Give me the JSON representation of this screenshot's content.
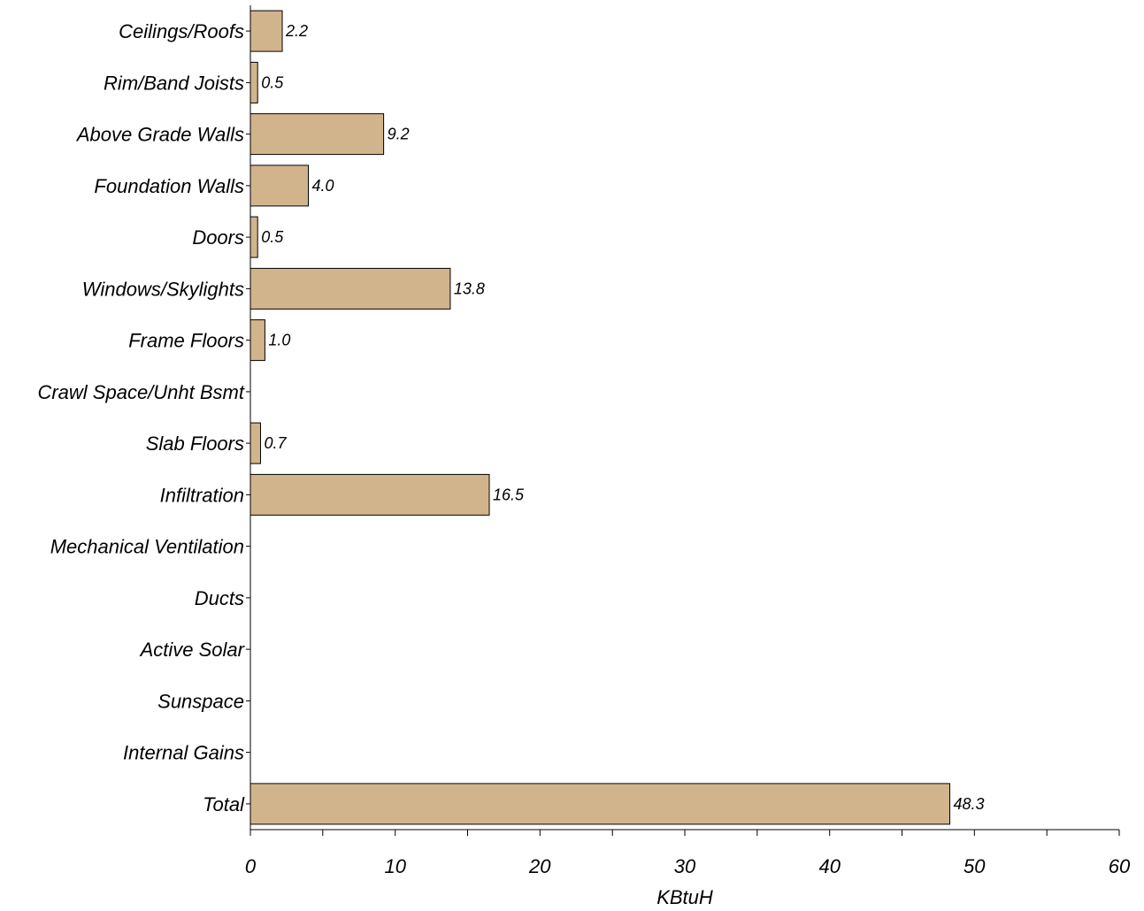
{
  "chart_data": {
    "type": "bar",
    "orientation": "horizontal",
    "categories": [
      "Ceilings/Roofs",
      "Rim/Band Joists",
      "Above Grade Walls",
      "Foundation Walls",
      "Doors",
      "Windows/Skylights",
      "Frame Floors",
      "Crawl Space/Unht Bsmt",
      "Slab Floors",
      "Infiltration",
      "Mechanical Ventilation",
      "Ducts",
      "Active Solar",
      "Sunspace",
      "Internal Gains",
      "Total"
    ],
    "values": [
      2.2,
      0.5,
      9.2,
      4.0,
      0.5,
      13.8,
      1.0,
      null,
      0.7,
      16.5,
      null,
      null,
      null,
      null,
      null,
      48.3
    ],
    "value_labels": [
      "2.2",
      "0.5",
      "9.2",
      "4.0",
      "0.5",
      "13.8",
      "1.0",
      "",
      "0.7",
      "16.5",
      "",
      "",
      "",
      "",
      "",
      "48.3"
    ],
    "xlabel": "KBtuH",
    "ylabel": "",
    "title": "",
    "xlim": [
      0,
      60
    ],
    "x_ticks": [
      0,
      10,
      20,
      30,
      40,
      50,
      60
    ],
    "x_minor_tick_step": 5,
    "bar_color": "#d2b48c",
    "grid": false,
    "legend": "none"
  }
}
